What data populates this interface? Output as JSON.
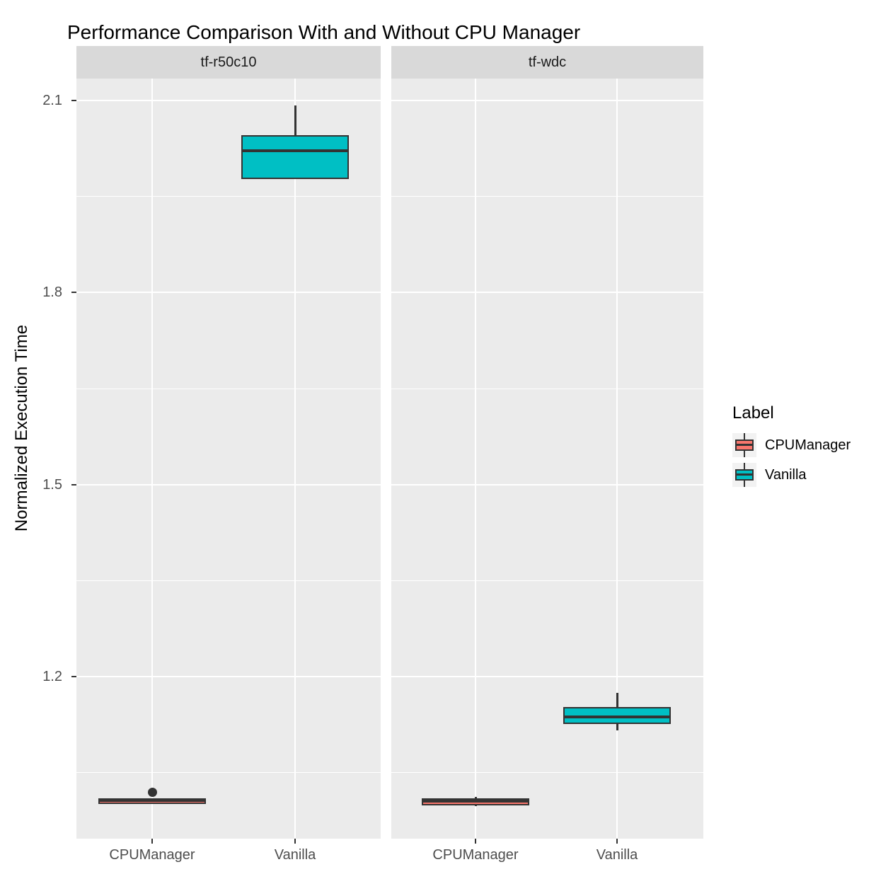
{
  "chart_data": {
    "type": "boxplot",
    "title": "Performance Comparison With and Without CPU Manager",
    "ylabel": "Normalized Execution Time",
    "xlabel": "",
    "ylim": [
      0.95,
      2.13
    ],
    "grid": "on",
    "panel_background": "#ebebeb",
    "strip_background": "#d9d9d9",
    "box_stroke_color": "#333333",
    "y_major_ticks": [
      2.1,
      1.8,
      1.5,
      1.2
    ],
    "y_tick_labels": [
      "2.1",
      "1.8",
      "1.5",
      "1.2"
    ],
    "y_minor_ticks": [
      1.95,
      1.65,
      1.35,
      1.05
    ],
    "categories": [
      "CPUManager",
      "Vanilla"
    ],
    "facets": [
      {
        "name": "tf-r50c10",
        "boxes": [
          {
            "group": "CPUManager",
            "color": "#F8766D",
            "whisker_low": 1.001,
            "q1": 1.004,
            "median": 1.007,
            "q3": 1.01,
            "whisker_high": 1.01,
            "outliers": [
              1.019
            ]
          },
          {
            "group": "Vanilla",
            "color": "#00BFC4",
            "whisker_low": 1.977,
            "q1": 1.977,
            "median": 2.021,
            "q3": 2.046,
            "whisker_high": 2.092,
            "outliers": []
          }
        ]
      },
      {
        "name": "tf-wdc",
        "boxes": [
          {
            "group": "CPUManager",
            "color": "#F8766D",
            "whisker_low": 0.998,
            "q1": 0.999,
            "median": 1.005,
            "q3": 1.01,
            "whisker_high": 1.012,
            "outliers": []
          },
          {
            "group": "Vanilla",
            "color": "#00BFC4",
            "whisker_low": 1.116,
            "q1": 1.126,
            "median": 1.137,
            "q3": 1.152,
            "whisker_high": 1.175,
            "outliers": []
          }
        ]
      }
    ],
    "legend": {
      "title": "Label",
      "position": "right",
      "entries": [
        {
          "label": "CPUManager",
          "color": "#F8766D"
        },
        {
          "label": "Vanilla",
          "color": "#00BFC4"
        }
      ]
    }
  }
}
